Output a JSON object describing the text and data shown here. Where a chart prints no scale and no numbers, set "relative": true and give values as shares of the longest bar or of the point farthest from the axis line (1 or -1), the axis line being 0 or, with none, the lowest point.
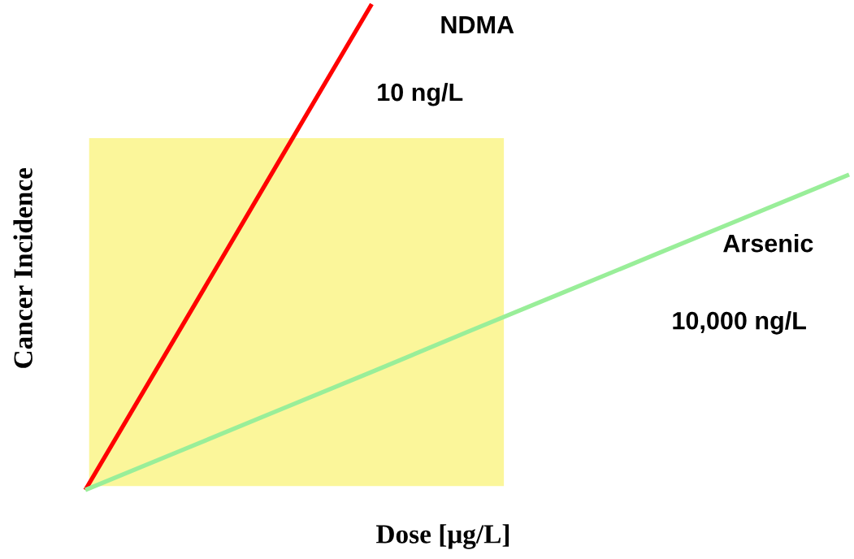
{
  "chart_data": {
    "type": "line",
    "relative": true,
    "xlabel": "Dose [μg/L]",
    "ylabel": "Cancer Incidence",
    "categories": [
      null,
      null,
      null,
      null,
      null,
      null,
      null,
      null,
      null
    ],
    "series": [
      {
        "name": "NDMA",
        "color": "#ff0000",
        "values": [
          0,
          0.333,
          0.667,
          1,
          null,
          null,
          null,
          null,
          null
        ]
      },
      {
        "name": "Arsenic",
        "color": "#99ee99",
        "values": [
          0,
          0.081,
          0.162,
          0.243,
          0.325,
          0.406,
          0.487,
          0.568,
          0.649
        ]
      }
    ],
    "annotations": [
      "10 ng/L",
      "10,000 ng/L"
    ]
  }
}
